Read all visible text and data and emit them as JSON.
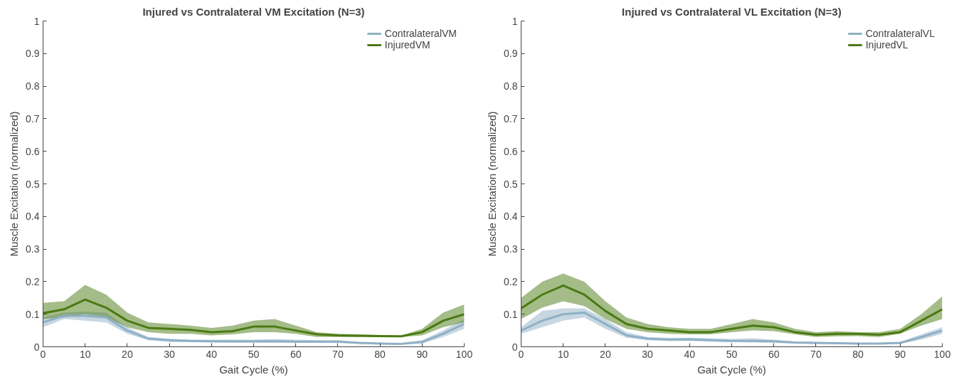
{
  "chart_data": [
    {
      "type": "line",
      "title": "Injured vs Contralateral VM Excitation (N=3)",
      "xlabel": "Gait Cycle (%)",
      "ylabel": "Muscle Excitation (normalized)",
      "x": [
        0,
        5,
        10,
        15,
        20,
        25,
        30,
        35,
        40,
        45,
        50,
        55,
        60,
        65,
        70,
        75,
        80,
        85,
        90,
        95,
        100
      ],
      "xlim": [
        0,
        100
      ],
      "ylim": [
        0,
        1
      ],
      "xticks": [
        0,
        10,
        20,
        30,
        40,
        50,
        60,
        70,
        80,
        90,
        100
      ],
      "yticks": [
        0,
        0.1,
        0.2,
        0.3,
        0.4,
        0.5,
        0.6,
        0.7,
        0.8,
        0.9,
        1
      ],
      "grid": false,
      "legend": "top right",
      "line_style": "solid",
      "marker": "none",
      "series": [
        {
          "name": "ContralateralVM",
          "color": "#8fb0c6",
          "values": [
            0.075,
            0.095,
            0.095,
            0.09,
            0.05,
            0.025,
            0.02,
            0.018,
            0.017,
            0.017,
            0.017,
            0.017,
            0.016,
            0.016,
            0.016,
            0.012,
            0.01,
            0.009,
            0.015,
            0.04,
            0.07
          ],
          "lower": [
            0.06,
            0.085,
            0.08,
            0.075,
            0.04,
            0.02,
            0.015,
            0.014,
            0.013,
            0.012,
            0.012,
            0.012,
            0.012,
            0.012,
            0.012,
            0.009,
            0.008,
            0.006,
            0.01,
            0.03,
            0.055
          ],
          "upper": [
            0.09,
            0.105,
            0.108,
            0.105,
            0.06,
            0.03,
            0.025,
            0.022,
            0.022,
            0.022,
            0.022,
            0.024,
            0.022,
            0.02,
            0.02,
            0.015,
            0.012,
            0.012,
            0.02,
            0.05,
            0.085
          ]
        },
        {
          "name": "InjuredVM",
          "color": "#4a7a12",
          "values": [
            0.103,
            0.115,
            0.145,
            0.12,
            0.08,
            0.058,
            0.055,
            0.052,
            0.045,
            0.048,
            0.062,
            0.062,
            0.05,
            0.038,
            0.035,
            0.034,
            0.033,
            0.032,
            0.045,
            0.08,
            0.1
          ],
          "lower": [
            0.085,
            0.09,
            0.1,
            0.09,
            0.06,
            0.045,
            0.04,
            0.04,
            0.035,
            0.038,
            0.045,
            0.045,
            0.04,
            0.03,
            0.03,
            0.03,
            0.03,
            0.03,
            0.035,
            0.06,
            0.075
          ],
          "upper": [
            0.135,
            0.14,
            0.19,
            0.16,
            0.105,
            0.075,
            0.07,
            0.065,
            0.058,
            0.065,
            0.08,
            0.085,
            0.065,
            0.045,
            0.04,
            0.038,
            0.036,
            0.034,
            0.055,
            0.105,
            0.13
          ]
        }
      ]
    },
    {
      "type": "line",
      "title": "Injured vs Contralateral VL Excitation (N=3)",
      "xlabel": "Gait Cycle (%)",
      "ylabel": "Muscle Excitation (normalized)",
      "x": [
        0,
        5,
        10,
        15,
        20,
        25,
        30,
        35,
        40,
        45,
        50,
        55,
        60,
        65,
        70,
        75,
        80,
        85,
        90,
        95,
        100
      ],
      "xlim": [
        0,
        100
      ],
      "ylim": [
        0,
        1
      ],
      "xticks": [
        0,
        10,
        20,
        30,
        40,
        50,
        60,
        70,
        80,
        90,
        100
      ],
      "yticks": [
        0,
        0.1,
        0.2,
        0.3,
        0.4,
        0.5,
        0.6,
        0.7,
        0.8,
        0.9,
        1
      ],
      "grid": false,
      "legend": "top right",
      "line_style": "solid",
      "marker": "none",
      "series": [
        {
          "name": "ContralateralVL",
          "color": "#8fb0c6",
          "values": [
            0.05,
            0.08,
            0.1,
            0.105,
            0.07,
            0.035,
            0.025,
            0.022,
            0.023,
            0.02,
            0.018,
            0.018,
            0.017,
            0.013,
            0.012,
            0.011,
            0.01,
            0.01,
            0.012,
            0.03,
            0.05
          ],
          "lower": [
            0.04,
            0.06,
            0.08,
            0.09,
            0.055,
            0.028,
            0.02,
            0.018,
            0.018,
            0.016,
            0.014,
            0.013,
            0.012,
            0.01,
            0.009,
            0.009,
            0.008,
            0.008,
            0.009,
            0.022,
            0.04
          ],
          "upper": [
            0.06,
            0.11,
            0.118,
            0.118,
            0.085,
            0.045,
            0.03,
            0.028,
            0.028,
            0.026,
            0.024,
            0.026,
            0.022,
            0.016,
            0.015,
            0.013,
            0.012,
            0.012,
            0.015,
            0.038,
            0.06
          ]
        },
        {
          "name": "InjuredVL",
          "color": "#4a7a12",
          "values": [
            0.118,
            0.16,
            0.188,
            0.16,
            0.11,
            0.07,
            0.055,
            0.05,
            0.045,
            0.045,
            0.055,
            0.065,
            0.06,
            0.045,
            0.037,
            0.04,
            0.04,
            0.037,
            0.045,
            0.08,
            0.115
          ],
          "lower": [
            0.085,
            0.12,
            0.14,
            0.125,
            0.085,
            0.055,
            0.045,
            0.04,
            0.038,
            0.038,
            0.045,
            0.05,
            0.048,
            0.038,
            0.03,
            0.032,
            0.033,
            0.03,
            0.04,
            0.065,
            0.085
          ],
          "upper": [
            0.15,
            0.2,
            0.225,
            0.2,
            0.14,
            0.09,
            0.07,
            0.06,
            0.055,
            0.055,
            0.07,
            0.085,
            0.075,
            0.055,
            0.045,
            0.048,
            0.045,
            0.045,
            0.055,
            0.1,
            0.155
          ]
        }
      ]
    }
  ]
}
